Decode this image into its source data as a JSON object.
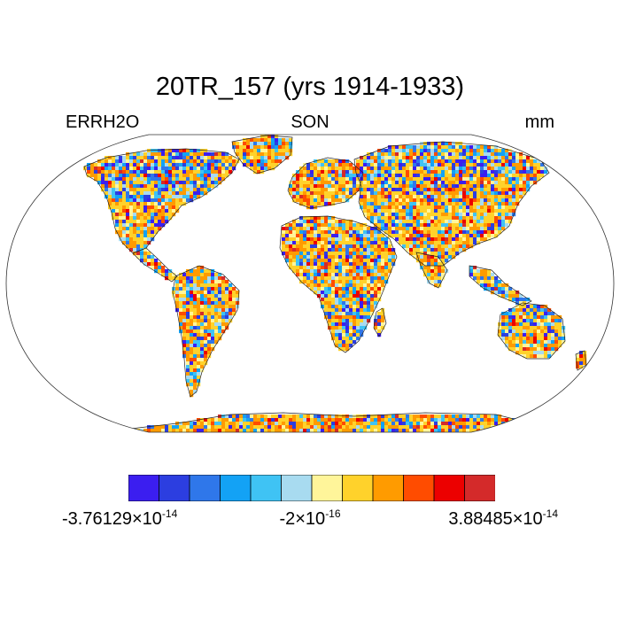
{
  "title": "20TR_157 (yrs 1914-1933)",
  "left_label": "ERRH2O",
  "center_label": "SON",
  "right_label": "mm",
  "colorbar": {
    "colors": [
      "#3b1ef0",
      "#2c3ee0",
      "#2f77ea",
      "#13a2f5",
      "#3fc3f4",
      "#a8dbf0",
      "#fff59a",
      "#ffd22b",
      "#ff9b00",
      "#ff4c00",
      "#ec0000",
      "#d42a2a"
    ],
    "min_mantissa": "-3.76129",
    "min_exponent": "-14",
    "mid_mantissa": "-2",
    "mid_exponent": "-16",
    "max_mantissa": "3.88485",
    "max_exponent": "-14",
    "times": "×10"
  },
  "map": {
    "projection": "robinson",
    "field_name": "ERRH2O",
    "season": "SON"
  }
}
